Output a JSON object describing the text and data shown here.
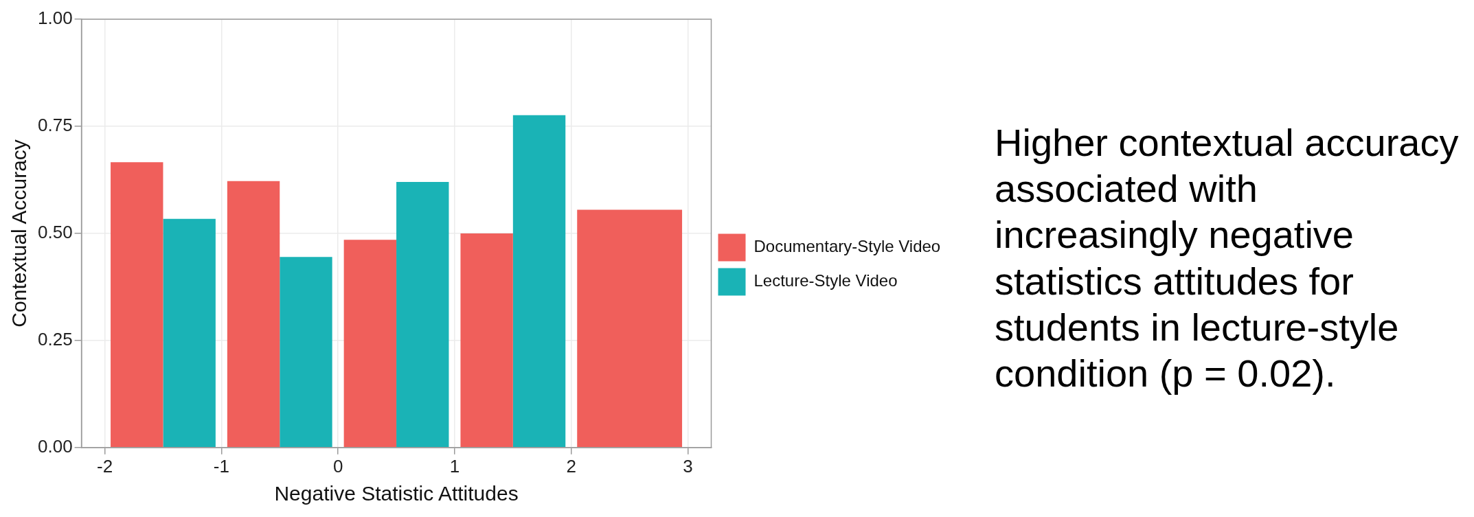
{
  "chart_data": {
    "type": "bar",
    "xlabel": "Negative Statistic Attitudes",
    "ylabel": "Contextual Accuracy",
    "x": [
      -1.5,
      -0.5,
      0.5,
      1.5,
      2.5
    ],
    "series": [
      {
        "name": "Documentary-Style Video",
        "color": "#f05f5b",
        "values": [
          0.666,
          0.622,
          0.485,
          0.5,
          0.555
        ]
      },
      {
        "name": "Lecture-Style Video",
        "color": "#1ab3b6",
        "values": [
          0.534,
          0.445,
          0.62,
          0.776,
          null
        ]
      }
    ],
    "xlim": [
      -2.2,
      3.2
    ],
    "xticks": [
      -2,
      -1,
      0,
      1,
      2,
      3
    ],
    "ylim": [
      0,
      1
    ],
    "yticks": [
      {
        "value": 0,
        "label": "0.00"
      },
      {
        "value": 0.25,
        "label": "0.25"
      },
      {
        "value": 0.5,
        "label": "0.50"
      },
      {
        "value": 0.75,
        "label": "0.75"
      },
      {
        "value": 1,
        "label": "1.00"
      }
    ],
    "grid": true,
    "legend": "right",
    "annotations": [
      "Higher contextual accuracy associated with increasingly negative statistics attitudes for students in lecture-style condition (p = 0.02)."
    ]
  }
}
